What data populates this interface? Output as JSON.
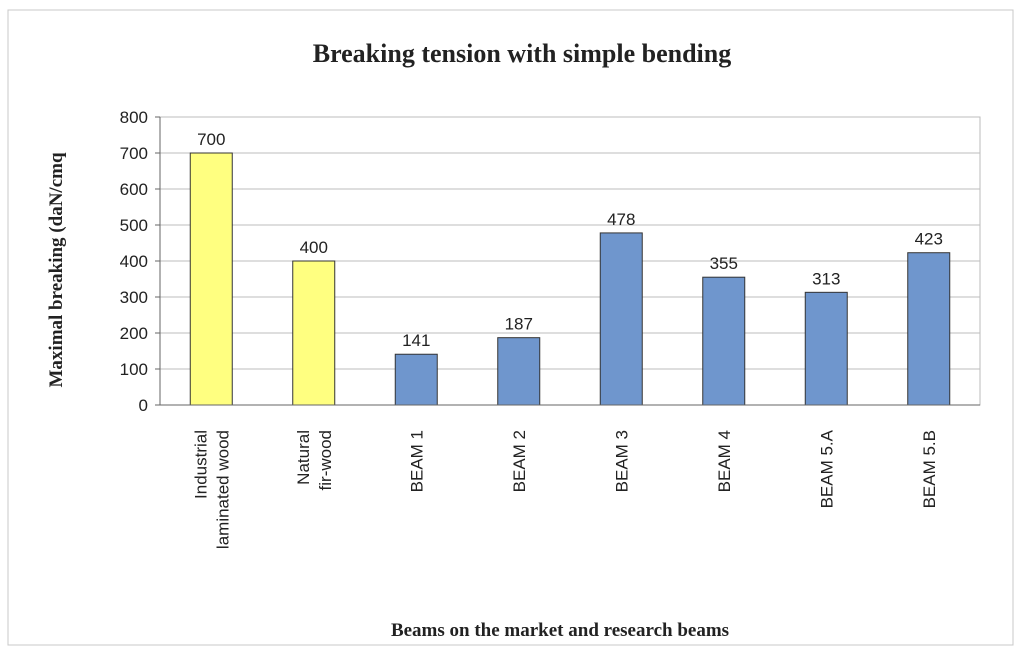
{
  "chart_data": {
    "type": "bar",
    "title": "Breaking tension with simple bending",
    "y_label": "Maximal breaking (daN/cmq",
    "x_label": "Beams on the market and research beams",
    "categories": [
      "Industrial\nlaminated wood",
      "Natural\nfir-wood",
      "BEAM 1",
      "BEAM 2",
      "BEAM 3",
      "BEAM 4",
      "BEAM 5.A",
      "BEAM 5.B"
    ],
    "values": [
      700,
      400,
      141,
      187,
      478,
      355,
      313,
      423
    ],
    "colors": [
      "#ffff80",
      "#ffff80",
      "#6f96cd",
      "#6f96cd",
      "#6f96cd",
      "#6f96cd",
      "#6f96cd",
      "#6f96cd"
    ],
    "ylim": [
      0,
      800
    ],
    "yticks": [
      0,
      100,
      200,
      300,
      400,
      500,
      600,
      700,
      800
    ],
    "grid": true
  }
}
